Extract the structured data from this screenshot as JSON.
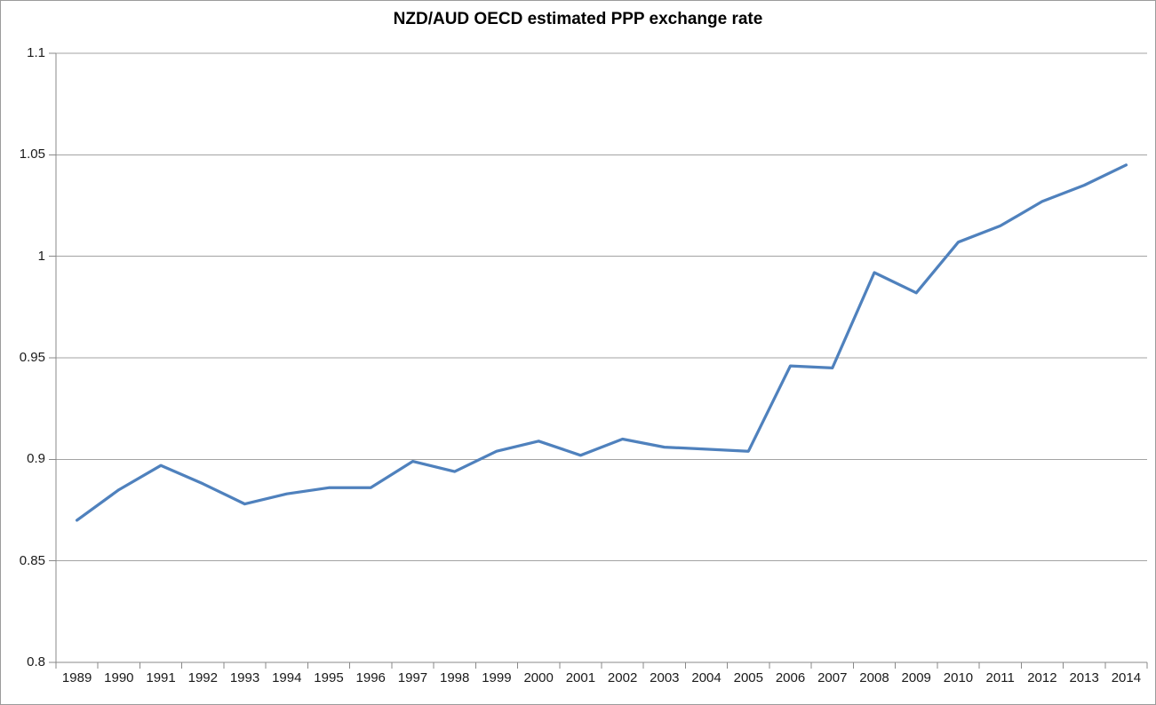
{
  "chart_data": {
    "type": "line",
    "title": "NZD/AUD OECD estimated PPP exchange rate",
    "x": [
      1989,
      1990,
      1991,
      1992,
      1993,
      1994,
      1995,
      1996,
      1997,
      1998,
      1999,
      2000,
      2001,
      2002,
      2003,
      2004,
      2005,
      2006,
      2007,
      2008,
      2009,
      2010,
      2011,
      2012,
      2013,
      2014
    ],
    "series": [
      {
        "name": "NZD/AUD OECD estimated PPP exchange rate",
        "values": [
          0.87,
          0.885,
          0.897,
          0.888,
          0.878,
          0.883,
          0.886,
          0.886,
          0.899,
          0.894,
          0.904,
          0.909,
          0.902,
          0.91,
          0.906,
          0.905,
          0.904,
          0.946,
          0.945,
          0.992,
          0.982,
          1.007,
          1.015,
          1.027,
          1.035,
          1.045
        ]
      }
    ],
    "xlabel": "",
    "ylabel": "",
    "ylim": [
      0.8,
      1.1
    ],
    "yticks": [
      {
        "label": "1.1",
        "value": 1.1
      },
      {
        "label": "1.05",
        "value": 1.05
      },
      {
        "label": "1",
        "value": 1.0
      },
      {
        "label": "0.95",
        "value": 0.95
      },
      {
        "label": "0.9",
        "value": 0.9
      },
      {
        "label": "0.85",
        "value": 0.85
      },
      {
        "label": "0.8",
        "value": 0.8
      }
    ],
    "grid": "horizontal",
    "legend": "none"
  },
  "colors": {
    "line": "#4f81bd",
    "gridline": "#a3a3a3",
    "axis": "#898989",
    "tick_text": "#1a1a1a",
    "title_text": "#000000",
    "background": "#ffffff",
    "border": "#9b9b9b"
  }
}
